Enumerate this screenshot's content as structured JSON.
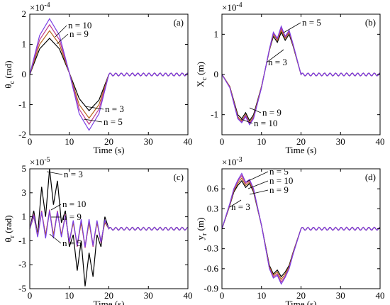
{
  "chart_data": [
    {
      "type": "line",
      "panel_label": "(a)",
      "xlabel": "Time (s)",
      "ylabel": "θc (rad)",
      "ylabel_main": "θ",
      "ylabel_sub": "c",
      "ylabel_unit": "(rad)",
      "multiplier": "×10",
      "multiplier_exp": "-4",
      "xlim": [
        0,
        40
      ],
      "ylim": [
        -2,
        2
      ],
      "xticks": [
        "0",
        "10",
        "20",
        "30",
        "40"
      ],
      "yticks": [
        "2",
        "1",
        "0",
        "-1",
        "-2"
      ],
      "series": [
        {
          "name": "n = 3",
          "color": "#000000",
          "x": [
            0,
            2.5,
            5,
            7.5,
            10,
            12.5,
            15,
            17.5,
            20,
            22,
            40
          ],
          "y": [
            0,
            0.85,
            1.2,
            0.85,
            0.05,
            -0.8,
            -1.2,
            -0.85,
            0,
            0,
            0
          ]
        },
        {
          "name": "n = 9",
          "color": "#b5651d",
          "x": [
            0,
            2.5,
            5,
            7.5,
            10,
            12.5,
            15,
            17.5,
            20,
            22,
            40
          ],
          "y": [
            0,
            1.0,
            1.45,
            1.0,
            0.05,
            -1.0,
            -1.45,
            -1.0,
            0,
            0,
            0
          ]
        },
        {
          "name": "n = 10",
          "color": "#c23b8a",
          "x": [
            0,
            2.5,
            5,
            7.5,
            10,
            12.5,
            15,
            17.5,
            20,
            22,
            40
          ],
          "y": [
            0,
            1.15,
            1.65,
            1.15,
            0.05,
            -1.15,
            -1.65,
            -1.15,
            0,
            0,
            0
          ]
        },
        {
          "name": "n = 5",
          "color": "#7b3fe4",
          "x": [
            0,
            2.5,
            5,
            7.5,
            10,
            12.5,
            15,
            17.5,
            20,
            22,
            40
          ],
          "y": [
            0,
            1.3,
            1.85,
            1.3,
            0.05,
            -1.3,
            -1.85,
            -1.3,
            0,
            0,
            0
          ]
        }
      ],
      "annotations": [
        "n = 10",
        "n = 9",
        "n = 3",
        "n = 5"
      ]
    },
    {
      "type": "line",
      "panel_label": "(b)",
      "xlabel": "Time (s)",
      "ylabel": "Xc (m)",
      "ylabel_main": "X",
      "ylabel_sub": "c",
      "ylabel_unit": "(m)",
      "multiplier": "×10",
      "multiplier_exp": "-4",
      "xlim": [
        0,
        40
      ],
      "ylim": [
        -1.5,
        1.5
      ],
      "xticks": [
        "0",
        "10",
        "20",
        "30",
        "40"
      ],
      "yticks": [
        "1",
        "0",
        "-1"
      ],
      "series": [
        {
          "name": "n = 3",
          "color": "#000000",
          "x": [
            0,
            2,
            4,
            5,
            6,
            7,
            8,
            10,
            12,
            13,
            14,
            15,
            16,
            17,
            18,
            20,
            40
          ],
          "y": [
            0,
            -0.3,
            -1.0,
            -1.1,
            -0.95,
            -1.15,
            -1.0,
            -0.3,
            0.6,
            0.95,
            0.8,
            1.05,
            0.85,
            1.0,
            0.7,
            0,
            0
          ]
        },
        {
          "name": "n = 9",
          "color": "#b5651d",
          "x": [
            0,
            2,
            4,
            5,
            6,
            7,
            8,
            10,
            12,
            13,
            14,
            15,
            16,
            17,
            18,
            20,
            40
          ],
          "y": [
            0,
            -0.3,
            -1.05,
            -1.15,
            -1.0,
            -1.2,
            -1.05,
            -0.3,
            0.6,
            1.0,
            0.85,
            1.1,
            0.9,
            1.05,
            0.72,
            0,
            0
          ]
        },
        {
          "name": "n = 10",
          "color": "#c23b8a",
          "x": [
            0,
            2,
            4,
            5,
            6,
            7,
            8,
            10,
            12,
            13,
            14,
            15,
            16,
            17,
            18,
            20,
            40
          ],
          "y": [
            0,
            -0.32,
            -1.08,
            -1.18,
            -1.02,
            -1.22,
            -1.08,
            -0.32,
            0.62,
            1.03,
            0.88,
            1.15,
            0.93,
            1.08,
            0.74,
            0,
            0
          ]
        },
        {
          "name": "n = 5",
          "color": "#7b3fe4",
          "x": [
            0,
            2,
            4,
            5,
            6,
            7,
            8,
            10,
            12,
            13,
            14,
            15,
            16,
            17,
            18,
            20,
            40
          ],
          "y": [
            0,
            -0.33,
            -1.1,
            -1.2,
            -1.05,
            -1.25,
            -1.1,
            -0.33,
            0.63,
            1.05,
            0.9,
            1.2,
            0.95,
            1.1,
            0.75,
            0,
            0
          ]
        }
      ],
      "annotations": [
        "n = 5",
        "n = 3",
        "n = 9",
        "n = 10"
      ]
    },
    {
      "type": "line",
      "panel_label": "(c)",
      "xlabel": "Time (s)",
      "ylabel": "θr (rad)",
      "ylabel_main": "θ",
      "ylabel_sub": "r",
      "ylabel_unit": "(rad)",
      "multiplier": "×10",
      "multiplier_exp": "-5",
      "xlim": [
        0,
        40
      ],
      "ylim": [
        -5,
        5
      ],
      "xticks": [
        "0",
        "10",
        "20",
        "30",
        "40"
      ],
      "yticks": [
        "5",
        "3",
        "1",
        "-1",
        "-3",
        "-5"
      ],
      "series": [
        {
          "name": "n = 3",
          "color": "#000000",
          "x": [
            0,
            1,
            2,
            3,
            4,
            5,
            6,
            7,
            8,
            9,
            10,
            11,
            12,
            13,
            14,
            15,
            16,
            17,
            18,
            19,
            20,
            40
          ],
          "y": [
            0,
            1.5,
            -0.5,
            3.5,
            1.0,
            5.0,
            2.0,
            4.0,
            0.5,
            1.5,
            -1.5,
            -0.5,
            -3.5,
            -1.0,
            -4.8,
            -2.0,
            -4.0,
            -0.5,
            -1.5,
            1.0,
            0,
            0
          ]
        },
        {
          "name": "n = 10",
          "color": "#c23b8a",
          "x": [
            0,
            1,
            2,
            3,
            4,
            5,
            6,
            7,
            8,
            9,
            10,
            11,
            12,
            13,
            14,
            15,
            16,
            17,
            18,
            19,
            20,
            40
          ],
          "y": [
            0,
            1.2,
            -0.6,
            1.5,
            -0.6,
            1.6,
            -0.6,
            1.5,
            -0.6,
            1.2,
            -1.2,
            0.6,
            -1.5,
            0.6,
            -1.6,
            0.6,
            -1.5,
            0.6,
            -1.2,
            0.6,
            0,
            0
          ]
        },
        {
          "name": "n = 9",
          "color": "#b5651d",
          "x": [
            0,
            1,
            2,
            3,
            4,
            5,
            6,
            7,
            8,
            9,
            10,
            11,
            12,
            13,
            14,
            15,
            16,
            17,
            18,
            19,
            20,
            40
          ],
          "y": [
            0,
            1.0,
            -0.5,
            1.3,
            -0.5,
            1.4,
            -0.5,
            1.3,
            -0.5,
            1.0,
            -1.0,
            0.5,
            -1.3,
            0.5,
            -1.4,
            0.5,
            -1.3,
            0.5,
            -1.0,
            0.5,
            0,
            0
          ]
        },
        {
          "name": "n = 5",
          "color": "#7b3fe4",
          "x": [
            0,
            1,
            2,
            3,
            4,
            5,
            6,
            7,
            8,
            9,
            10,
            11,
            12,
            13,
            14,
            15,
            16,
            17,
            18,
            19,
            20,
            40
          ],
          "y": [
            0,
            1.1,
            -0.7,
            1.4,
            -0.8,
            1.5,
            -0.8,
            1.4,
            -0.7,
            1.1,
            -1.1,
            0.7,
            -1.4,
            0.8,
            -1.5,
            0.8,
            -1.4,
            0.7,
            -1.1,
            0.7,
            0,
            0
          ]
        }
      ],
      "annotations": [
        "n = 3",
        "n = 10",
        "n = 9",
        "n = 5"
      ]
    },
    {
      "type": "line",
      "panel_label": "(d)",
      "xlabel": "Time (s)",
      "ylabel": "yr (m)",
      "ylabel_main": "y",
      "ylabel_sub": "r",
      "ylabel_unit": "(m)",
      "multiplier": "×10",
      "multiplier_exp": "-3",
      "xlim": [
        0,
        40
      ],
      "ylim": [
        -0.9,
        0.9
      ],
      "xticks": [
        "0",
        "10",
        "20",
        "30",
        "40"
      ],
      "yticks": [
        "0.6",
        "0.3",
        "0",
        "-0.3",
        "-0.6",
        "-0.9"
      ],
      "series": [
        {
          "name": "n = 3",
          "color": "#000000",
          "x": [
            0,
            2,
            3,
            4,
            5,
            6,
            7,
            8,
            10,
            12,
            13,
            14,
            15,
            16,
            17,
            18,
            20,
            40
          ],
          "y": [
            0,
            0.35,
            0.55,
            0.65,
            0.72,
            0.62,
            0.68,
            0.55,
            0.05,
            -0.55,
            -0.68,
            -0.62,
            -0.72,
            -0.65,
            -0.55,
            -0.35,
            0,
            0
          ]
        },
        {
          "name": "n = 9",
          "color": "#b5651d",
          "x": [
            0,
            2,
            3,
            4,
            5,
            6,
            7,
            8,
            10,
            12,
            13,
            14,
            15,
            16,
            17,
            18,
            20,
            40
          ],
          "y": [
            0,
            0.36,
            0.57,
            0.68,
            0.76,
            0.65,
            0.7,
            0.57,
            0.05,
            -0.57,
            -0.7,
            -0.65,
            -0.76,
            -0.68,
            -0.57,
            -0.36,
            0,
            0
          ]
        },
        {
          "name": "n = 10",
          "color": "#c23b8a",
          "x": [
            0,
            2,
            3,
            4,
            5,
            6,
            7,
            8,
            10,
            12,
            13,
            14,
            15,
            16,
            17,
            18,
            20,
            40
          ],
          "y": [
            0,
            0.37,
            0.59,
            0.71,
            0.8,
            0.68,
            0.72,
            0.59,
            0.05,
            -0.59,
            -0.72,
            -0.68,
            -0.8,
            -0.71,
            -0.59,
            -0.37,
            0,
            0
          ]
        },
        {
          "name": "n = 5",
          "color": "#7b3fe4",
          "x": [
            0,
            2,
            3,
            4,
            5,
            6,
            7,
            8,
            10,
            12,
            13,
            14,
            15,
            16,
            17,
            18,
            20,
            40
          ],
          "y": [
            0,
            0.38,
            0.6,
            0.73,
            0.83,
            0.7,
            0.74,
            0.6,
            0.05,
            -0.6,
            -0.74,
            -0.7,
            -0.83,
            -0.73,
            -0.6,
            -0.38,
            0,
            0
          ]
        }
      ],
      "annotations": [
        "n = 5",
        "n = 10",
        "n = 9",
        "n = 3"
      ]
    }
  ]
}
